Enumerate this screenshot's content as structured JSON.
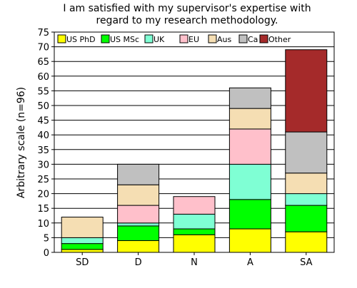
{
  "chart_data": {
    "type": "bar",
    "stacked": true,
    "title": "I am satisfied with my supervisor's expertise with regard to my research methodology.",
    "title_lines": [
      "I am satisfied with my supervisor's expertise with",
      "regard to my research methodology."
    ],
    "xlabel": "",
    "ylabel": "Arbitrary scale (n=96)",
    "categories": [
      "SD",
      "D",
      "N",
      "A",
      "SA"
    ],
    "ylim": [
      0,
      75
    ],
    "yticks": [
      0,
      5,
      10,
      15,
      20,
      25,
      30,
      35,
      40,
      45,
      50,
      55,
      60,
      65,
      70,
      75
    ],
    "grid": true,
    "legend_position": "top",
    "series": [
      {
        "name": "US PhD",
        "color": "#ffff00",
        "values": [
          1,
          4,
          6,
          8,
          7
        ]
      },
      {
        "name": "US MSc",
        "color": "#00ff00",
        "values": [
          2,
          5,
          2,
          10,
          9
        ]
      },
      {
        "name": "UK",
        "color": "#7fffd4",
        "values": [
          2,
          1,
          5,
          12,
          4
        ]
      },
      {
        "name": "EU",
        "color": "#ffc0cb",
        "values": [
          0,
          6,
          6,
          12,
          0
        ]
      },
      {
        "name": "Aus",
        "color": "#f5deb3",
        "values": [
          7,
          7,
          0,
          7,
          7
        ]
      },
      {
        "name": "Ca",
        "color": "#c0c0c0",
        "values": [
          0,
          7,
          0,
          7,
          14
        ]
      },
      {
        "name": "Other",
        "color": "#a52a2a",
        "values": [
          0,
          0,
          0,
          0,
          28
        ]
      }
    ]
  }
}
